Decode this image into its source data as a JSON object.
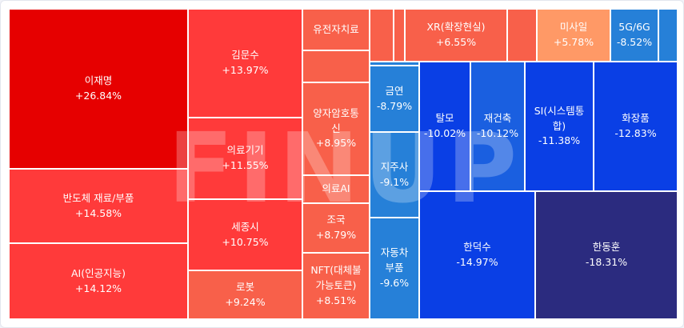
{
  "watermark": "FINUP",
  "chart_data": {
    "type": "treemap",
    "colors": {
      "up_strong": "#e60000",
      "up": "#ff3a3a",
      "up_light": "#f8604a",
      "up_pale": "#ff9966",
      "down": "#1a5fe0",
      "down_strong": "#0a3fe5",
      "down_dark": "#2b2b7f",
      "down_light": "#2680d8"
    },
    "tiles": [
      {
        "label": "이재명",
        "change": "+26.84%",
        "value": 26.84
      },
      {
        "label": "반도체 재료/부품",
        "change": "+14.58%",
        "value": 14.58
      },
      {
        "label": "AI(인공지능)",
        "change": "+14.12%",
        "value": 14.12
      },
      {
        "label": "김문수",
        "change": "+13.97%",
        "value": 13.97
      },
      {
        "label": "의료기기",
        "change": "+11.55%",
        "value": 11.55
      },
      {
        "label": "세종시",
        "change": "+10.75%",
        "value": 10.75
      },
      {
        "label": "로봇",
        "change": "+9.24%",
        "value": 9.24
      },
      {
        "label": "유전자치료",
        "change": "",
        "value": null
      },
      {
        "label": "양자암호통신",
        "change": "+8.95%",
        "value": 8.95
      },
      {
        "label": "의료AI",
        "change": "",
        "value": null
      },
      {
        "label": "조국",
        "change": "+8.79%",
        "value": 8.79
      },
      {
        "label": "NFT(대체불가능토큰)",
        "change": "+8.51%",
        "value": 8.51
      },
      {
        "label": "XR(확장현실)",
        "change": "+6.55%",
        "value": 6.55
      },
      {
        "label": "미사일",
        "change": "+5.78%",
        "value": 5.78
      },
      {
        "label": "5G/6G",
        "change": "-8.52%",
        "value": -8.52
      },
      {
        "label": "금연",
        "change": "-8.79%",
        "value": -8.79
      },
      {
        "label": "지주사",
        "change": "-9.1%",
        "value": -9.1
      },
      {
        "label": "자동차부품",
        "change": "-9.6%",
        "value": -9.6
      },
      {
        "label": "탈모",
        "change": "-10.02%",
        "value": -10.02
      },
      {
        "label": "재건축",
        "change": "-10.12%",
        "value": -10.12
      },
      {
        "label": "SI(시스템통합)",
        "change": "-11.38%",
        "value": -11.38
      },
      {
        "label": "화장품",
        "change": "-12.83%",
        "value": -12.83
      },
      {
        "label": "한덕수",
        "change": "-14.97%",
        "value": -14.97
      },
      {
        "label": "한동훈",
        "change": "-18.31%",
        "value": -18.31
      },
      {
        "label": "",
        "change": "",
        "value": null
      },
      {
        "label": "",
        "change": "",
        "value": null
      },
      {
        "label": "",
        "change": "",
        "value": null
      },
      {
        "label": "",
        "change": "",
        "value": null
      },
      {
        "label": "",
        "change": "",
        "value": null
      },
      {
        "label": "",
        "change": "",
        "value": null
      }
    ]
  }
}
